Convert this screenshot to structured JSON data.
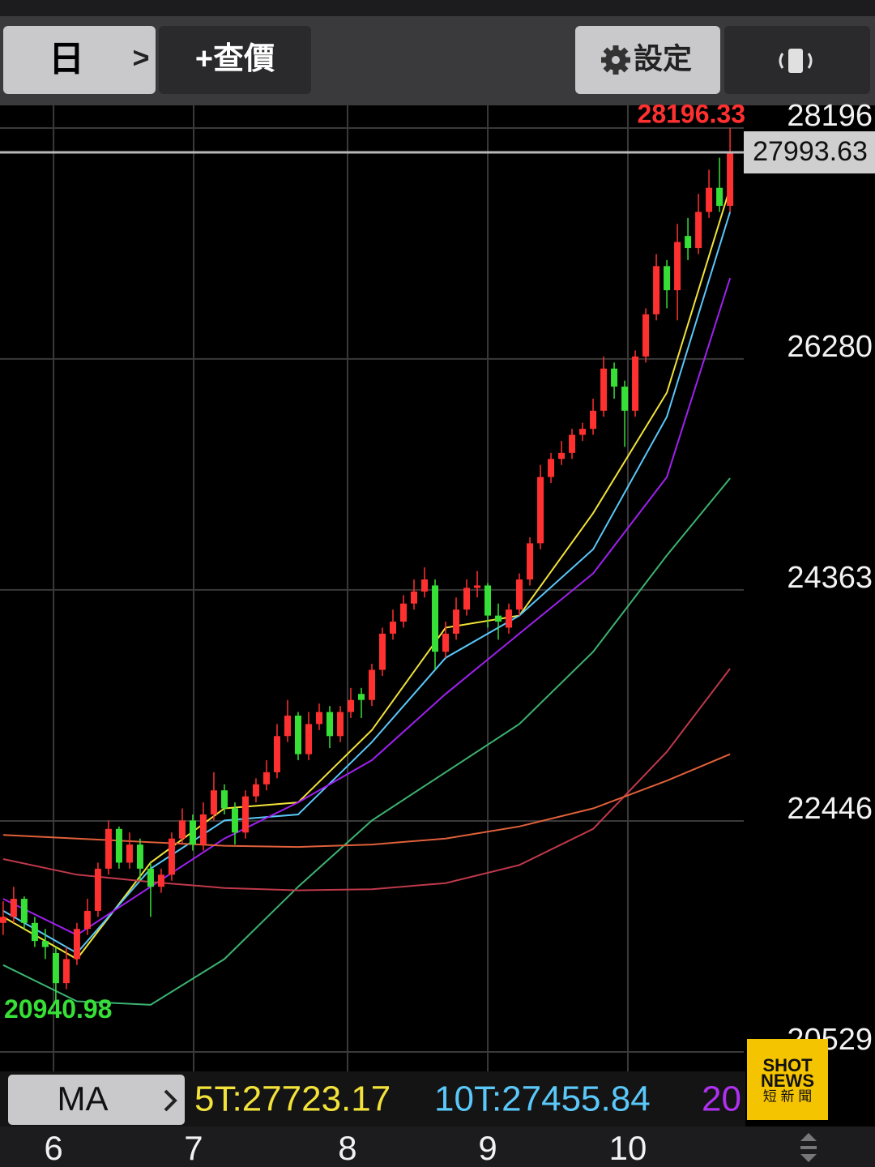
{
  "toolbar": {
    "period": "日",
    "chevron": ">",
    "quote": "+查價",
    "settings": "設定"
  },
  "chart_data": {
    "type": "candlestick",
    "x": [
      0,
      1,
      2,
      3,
      4,
      5,
      6,
      7,
      8,
      9,
      10,
      11,
      12,
      13,
      14,
      15,
      16,
      17,
      18,
      19,
      20,
      21,
      22,
      23,
      24,
      25,
      26,
      27,
      28,
      29,
      30,
      31,
      32,
      33,
      34,
      35,
      36,
      37,
      38,
      39,
      40,
      41,
      42,
      43,
      44,
      45,
      46,
      47,
      48,
      49,
      50,
      51,
      52,
      53,
      54,
      55,
      56,
      57,
      58,
      59,
      60,
      61,
      62,
      63,
      64,
      65,
      66,
      67,
      68,
      69
    ],
    "candles": [
      [
        21600,
        21780,
        21500,
        21650
      ],
      [
        21650,
        21900,
        21600,
        21800
      ],
      [
        21800,
        21820,
        21550,
        21600
      ],
      [
        21600,
        21650,
        21400,
        21450
      ],
      [
        21450,
        21550,
        21300,
        21400
      ],
      [
        21350,
        21400,
        20940.98,
        21100
      ],
      [
        21100,
        21400,
        21050,
        21300
      ],
      [
        21300,
        21600,
        21250,
        21550
      ],
      [
        21550,
        21800,
        21500,
        21700
      ],
      [
        21700,
        22100,
        21650,
        22050
      ],
      [
        22050,
        22450,
        22000,
        22380
      ],
      [
        22380,
        22400,
        22050,
        22100
      ],
      [
        22100,
        22350,
        22050,
        22250
      ],
      [
        22250,
        22300,
        21950,
        22050
      ],
      [
        22050,
        22100,
        21650,
        21900
      ],
      [
        21900,
        22050,
        21850,
        22000
      ],
      [
        22000,
        22350,
        21950,
        22300
      ],
      [
        22300,
        22550,
        22250,
        22450
      ],
      [
        22450,
        22500,
        22200,
        22250
      ],
      [
        22250,
        22600,
        22200,
        22500
      ],
      [
        22500,
        22850,
        22450,
        22700
      ],
      [
        22700,
        22750,
        22500,
        22550
      ],
      [
        22550,
        22600,
        22250,
        22350
      ],
      [
        22350,
        22700,
        22300,
        22650
      ],
      [
        22650,
        22800,
        22600,
        22750
      ],
      [
        22750,
        22950,
        22700,
        22850
      ],
      [
        22850,
        23250,
        22800,
        23150
      ],
      [
        23150,
        23450,
        23100,
        23320
      ],
      [
        23320,
        23350,
        22950,
        23000
      ],
      [
        23000,
        23350,
        22950,
        23250
      ],
      [
        23250,
        23420,
        23200,
        23350
      ],
      [
        23350,
        23400,
        23050,
        23150
      ],
      [
        23150,
        23400,
        23100,
        23350
      ],
      [
        23350,
        23550,
        23300,
        23450
      ],
      [
        23500,
        23550,
        23300,
        23450
      ],
      [
        23450,
        23750,
        23400,
        23700
      ],
      [
        23700,
        24050,
        23650,
        24000
      ],
      [
        24000,
        24200,
        23950,
        24100
      ],
      [
        24100,
        24320,
        24050,
        24250
      ],
      [
        24250,
        24450,
        24200,
        24350
      ],
      [
        24350,
        24550,
        24300,
        24450
      ],
      [
        24400,
        24450,
        23700,
        23850
      ],
      [
        23850,
        24100,
        23800,
        24000
      ],
      [
        24000,
        24300,
        23950,
        24200
      ],
      [
        24200,
        24450,
        24150,
        24380
      ],
      [
        24380,
        24520,
        24300,
        24400
      ],
      [
        24400,
        24420,
        24050,
        24150
      ],
      [
        24150,
        24250,
        23950,
        24100
      ],
      [
        24050,
        24250,
        24000,
        24200
      ],
      [
        24200,
        24500,
        24150,
        24450
      ],
      [
        24450,
        24800,
        24400,
        24750
      ],
      [
        24750,
        25400,
        24700,
        25300
      ],
      [
        25300,
        25500,
        25250,
        25450
      ],
      [
        25450,
        25600,
        25400,
        25500
      ],
      [
        25500,
        25700,
        25450,
        25650
      ],
      [
        25650,
        25750,
        25600,
        25700
      ],
      [
        25700,
        25950,
        25650,
        25850
      ],
      [
        25850,
        26300,
        25800,
        26200
      ],
      [
        26200,
        26250,
        25950,
        26050
      ],
      [
        26050,
        26100,
        25550,
        25850
      ],
      [
        25850,
        26350,
        25800,
        26300
      ],
      [
        26300,
        26700,
        26250,
        26650
      ],
      [
        26650,
        27150,
        26600,
        27050
      ],
      [
        27050,
        27100,
        26700,
        26850
      ],
      [
        26850,
        27400,
        26600,
        27250
      ],
      [
        27300,
        27450,
        27100,
        27200
      ],
      [
        27200,
        27650,
        27150,
        27500
      ],
      [
        27500,
        27850,
        27450,
        27700
      ],
      [
        27700,
        27950,
        27500,
        27550
      ],
      [
        27550,
        28196.33,
        27500,
        27993.63
      ]
    ],
    "up_color": "#ff3030",
    "down_color": "#36e036",
    "ma_lines": [
      {
        "color": "#f2e23a",
        "x": [
          0,
          7,
          14,
          21,
          28,
          35,
          42,
          49,
          56,
          63,
          69
        ],
        "values": [
          21650,
          21300,
          22100,
          22550,
          22600,
          23200,
          24050,
          24150,
          25000,
          26000,
          27700
        ]
      },
      {
        "color": "#5ac8fa",
        "x": [
          0,
          7,
          14,
          21,
          28,
          35,
          42,
          49,
          56,
          63,
          69
        ],
        "values": [
          21700,
          21350,
          22050,
          22450,
          22500,
          23100,
          23800,
          24150,
          24700,
          25800,
          27500
        ]
      },
      {
        "color": "#a020f0",
        "x": [
          0,
          7,
          14,
          21,
          28,
          35,
          42,
          49,
          56,
          63,
          69
        ],
        "values": [
          21800,
          21500,
          21900,
          22300,
          22600,
          22950,
          23500,
          24000,
          24500,
          25300,
          26950
        ]
      },
      {
        "color": "#3cb371",
        "x": [
          0,
          7,
          14,
          21,
          28,
          35,
          42,
          49,
          56,
          63,
          69
        ],
        "values": [
          21250,
          20950,
          20920,
          21300,
          21900,
          22450,
          22850,
          23250,
          23850,
          24650,
          25290
        ]
      },
      {
        "color": "#c0394b",
        "x": [
          0,
          7,
          14,
          21,
          28,
          35,
          42,
          49,
          56,
          63,
          69
        ],
        "values": [
          22130,
          22000,
          21940,
          21890,
          21870,
          21880,
          21930,
          22080,
          22380,
          23020,
          23710
        ]
      },
      {
        "color": "#e0603a",
        "x": [
          0,
          7,
          14,
          21,
          28,
          35,
          42,
          49,
          56,
          63,
          69
        ],
        "values": [
          22330,
          22300,
          22270,
          22240,
          22230,
          22250,
          22300,
          22400,
          22550,
          22780,
          23000
        ]
      }
    ],
    "xlim": [
      -0.3,
      70.3
    ],
    "xticks": [
      {
        "value": 4.78,
        "label": "6"
      },
      {
        "value": 18.08,
        "label": "7"
      },
      {
        "value": 32.69,
        "label": "8"
      },
      {
        "value": 46.0,
        "label": "9"
      },
      {
        "value": 59.3,
        "label": "10"
      }
    ],
    "ylim": [
      20368,
      28384
    ],
    "yticks": [
      20529,
      22446,
      24363,
      26280,
      28196
    ],
    "grid": true,
    "indicator_button": "MA",
    "ma_legend": [
      {
        "text": "5T:27723.17",
        "color": "#f2e23a"
      },
      {
        "text": "10T:27455.84",
        "color": "#5ac8fa"
      },
      {
        "text": "20",
        "color": "#b030f0"
      }
    ]
  },
  "watermark": {
    "line1": "SHOT",
    "line2": "NEWS",
    "line3": "短 新 聞"
  }
}
